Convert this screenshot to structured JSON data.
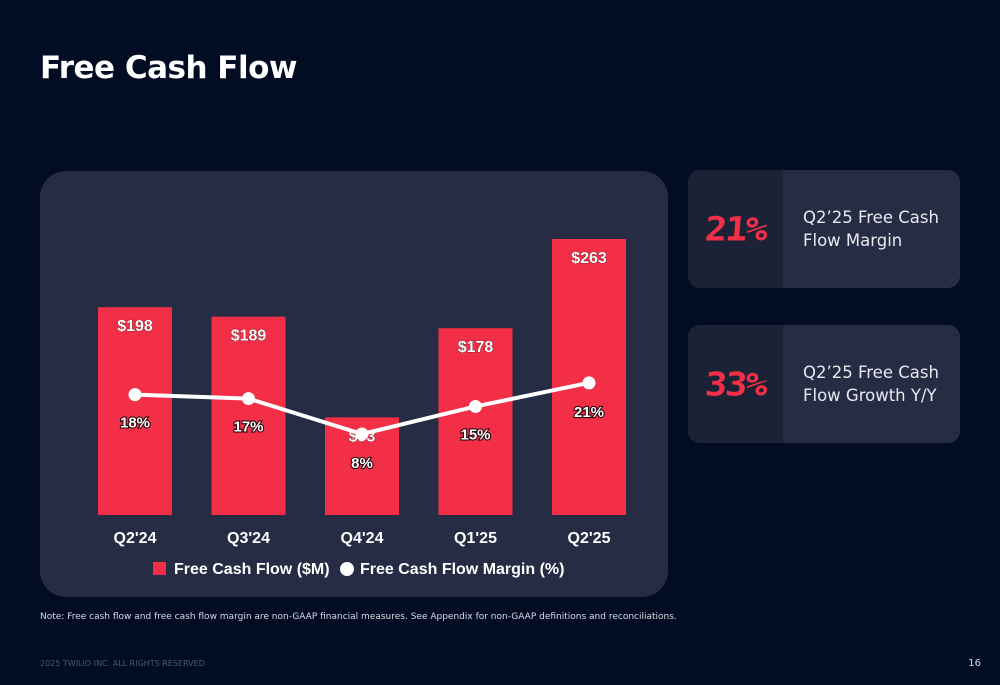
{
  "page": {
    "title": "Free Cash Flow",
    "note": "Note: Free cash flow and free cash flow margin are non-GAAP financial measures. See Appendix for non-GAAP definitions and reconciliations.",
    "footer": "2025 TWILIO INC. ALL RIGHTS RESERVED",
    "page_number": "16"
  },
  "kpis": [
    {
      "value": "21%",
      "label": "Q2’25 Free Cash Flow Margin"
    },
    {
      "value": "33%",
      "label": "Q2’25 Free Cash Flow Growth Y/Y"
    }
  ],
  "colors": {
    "background": "#020c22",
    "panel": "#252c43",
    "accent_red": "#f22f46",
    "line_white": "#ffffff"
  },
  "chart_data": {
    "type": "bar",
    "title": "",
    "categories": [
      "Q2'24",
      "Q3'24",
      "Q4'24",
      "Q1'25",
      "Q2'25"
    ],
    "series": [
      {
        "name": "Free Cash Flow ($M)",
        "type": "bar",
        "values": [
          198,
          189,
          93,
          178,
          263
        ],
        "labels": [
          "$198",
          "$189",
          "$93",
          "$178",
          "$263"
        ],
        "color": "#f22f46"
      },
      {
        "name": "Free Cash Flow Margin (%)",
        "type": "line",
        "values": [
          18,
          17,
          8,
          15,
          21
        ],
        "labels": [
          "18%",
          "17%",
          "8%",
          "15%",
          "21%"
        ],
        "color": "#ffffff"
      }
    ],
    "ylim": [
      0,
      300
    ],
    "y2lim": [
      0,
      30
    ],
    "grid": false,
    "legend": "bottom"
  }
}
